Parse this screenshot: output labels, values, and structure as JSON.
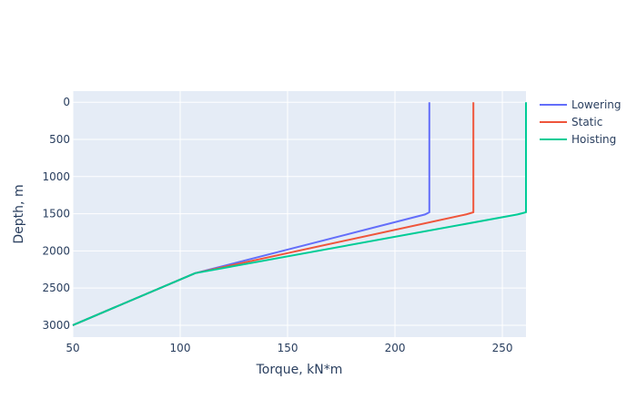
{
  "chart_data": {
    "type": "line",
    "xlabel": "Torque, kN*m",
    "ylabel": "Depth, m",
    "xlim": [
      50,
      261
    ],
    "ylim": [
      3160,
      -150
    ],
    "y_reversed": true,
    "x_ticks": [
      50,
      100,
      150,
      200,
      250
    ],
    "y_ticks": [
      0,
      500,
      1000,
      1500,
      2000,
      2500,
      3000
    ],
    "grid": true,
    "legend_position": "top-right",
    "series": [
      {
        "name": "Lowering",
        "color": "#636efa",
        "points": [
          [
            216,
            0
          ],
          [
            216,
            1480
          ],
          [
            214,
            1510
          ],
          [
            107,
            2300
          ],
          [
            50,
            3000
          ]
        ]
      },
      {
        "name": "Static",
        "color": "#ef553b",
        "points": [
          [
            236.5,
            0
          ],
          [
            236.5,
            1480
          ],
          [
            233,
            1510
          ],
          [
            107,
            2300
          ],
          [
            50,
            3000
          ]
        ]
      },
      {
        "name": "Hoisting",
        "color": "#00cc96",
        "points": [
          [
            261,
            0
          ],
          [
            261,
            1480
          ],
          [
            257,
            1510
          ],
          [
            107,
            2300
          ],
          [
            50,
            3000
          ]
        ]
      }
    ]
  }
}
